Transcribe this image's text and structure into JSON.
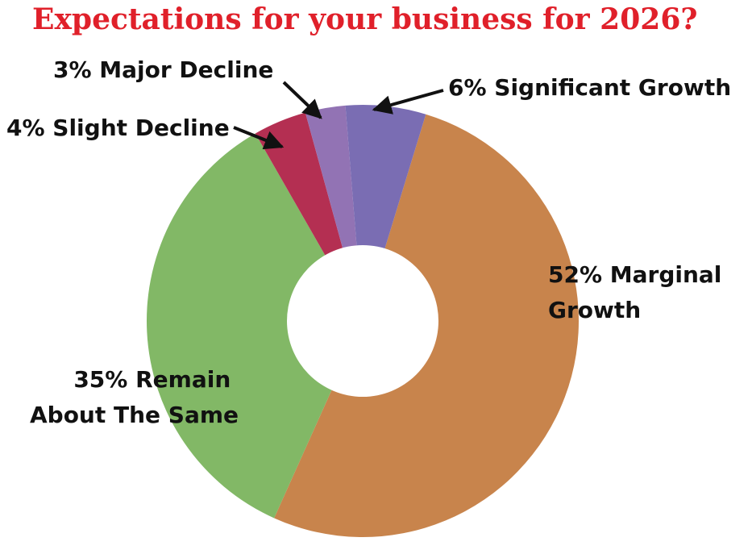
{
  "chart_data": {
    "type": "pie",
    "title": "Expectations for your business for 2026?",
    "style": "donut",
    "start_angle_deg": 0,
    "colors": {
      "title": "#e0202a",
      "marginal_growth": "#c8844c",
      "remain_same": "#82b866",
      "slight_decline": "#b42f52",
      "major_decline": "#9273b4",
      "significant_growth": "#7a6db3",
      "hole": "#ffffff"
    },
    "slices": [
      {
        "label_lines": [
          "52% Marginal",
          "Growth"
        ],
        "value": 52,
        "color": "#c8844c"
      },
      {
        "label_lines": [
          "35% Remain",
          "About The Same"
        ],
        "value": 35,
        "color": "#82b866"
      },
      {
        "label_lines": [
          "4% Slight Decline"
        ],
        "value": 4,
        "color": "#b42f52"
      },
      {
        "label_lines": [
          "3% Major Decline"
        ],
        "value": 3,
        "color": "#9273b4"
      },
      {
        "label_lines": [
          "6% Significant Growth"
        ],
        "value": 6,
        "color": "#7a6db3"
      }
    ]
  }
}
